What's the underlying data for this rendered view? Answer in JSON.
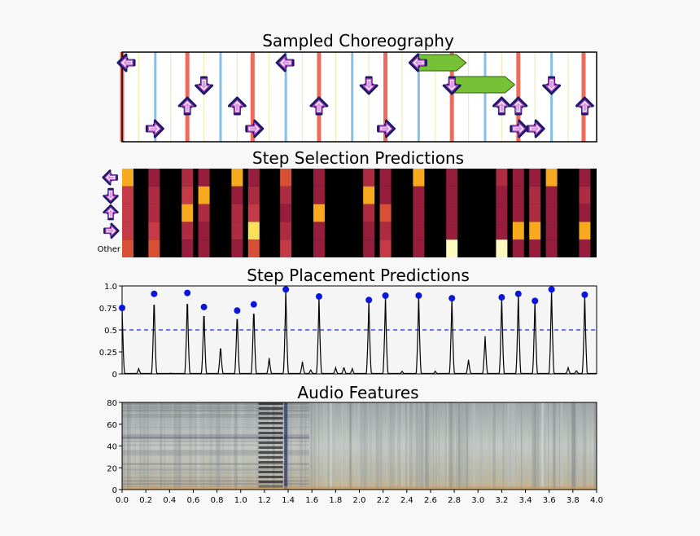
{
  "colors": {
    "red_beat": "#ec6b5a",
    "blue_beat": "#86bfe8",
    "yellow_beat": "#f2eab2",
    "arrow_fill": "#ffffff",
    "arrow_outline": "#1d1a63",
    "arrow_accent": "#b143c9",
    "hold_green": "#77c136",
    "peak_dot": "#0a17d9",
    "threshold_line": "#1c2be6",
    "curve": "#000000"
  },
  "chart_data": [
    {
      "type": "choreography",
      "title": "Sampled Choreography",
      "x_range": [
        0,
        4.0
      ],
      "lanes": [
        "left",
        "down",
        "up",
        "right"
      ],
      "red_beats": [
        0.0,
        0.55,
        1.1,
        1.66,
        2.22,
        2.78,
        3.34,
        3.89
      ],
      "blue_beats": [
        0.28,
        0.83,
        1.38,
        1.94,
        2.5,
        3.06,
        3.62
      ],
      "yellow_beats": [
        0.14,
        0.41,
        0.69,
        0.97,
        1.24,
        1.52,
        1.8,
        2.08,
        2.36,
        2.64,
        2.92,
        3.2,
        3.48,
        3.76
      ],
      "steps": [
        {
          "t": 0.02,
          "lane": "left"
        },
        {
          "t": 0.27,
          "lane": "right"
        },
        {
          "t": 0.55,
          "lane": "up"
        },
        {
          "t": 0.69,
          "lane": "down"
        },
        {
          "t": 0.97,
          "lane": "up"
        },
        {
          "t": 1.11,
          "lane": "right"
        },
        {
          "t": 1.38,
          "lane": "left"
        },
        {
          "t": 1.66,
          "lane": "up"
        },
        {
          "t": 2.08,
          "lane": "down"
        },
        {
          "t": 2.22,
          "lane": "right"
        },
        {
          "t": 2.5,
          "lane": "left"
        },
        {
          "t": 2.78,
          "lane": "down"
        },
        {
          "t": 3.2,
          "lane": "up"
        },
        {
          "t": 3.34,
          "lane": "up"
        },
        {
          "t": 3.34,
          "lane": "right"
        },
        {
          "t": 3.48,
          "lane": "right"
        },
        {
          "t": 3.62,
          "lane": "down"
        },
        {
          "t": 3.9,
          "lane": "up"
        }
      ],
      "holds": [
        {
          "lane": "left",
          "start": 2.5,
          "end": 2.9
        },
        {
          "lane": "down",
          "start": 2.78,
          "end": 3.31
        }
      ]
    },
    {
      "type": "heatmap",
      "title": "Step Selection Predictions",
      "rows": [
        "left",
        "down",
        "up",
        "right",
        "Other"
      ],
      "row_label_other": "Other",
      "x_range": [
        0,
        4.0
      ],
      "columns": [
        {
          "t": 0.02,
          "v": [
            0.8,
            0.5,
            0.5,
            0.5,
            0.6
          ]
        },
        {
          "t": 0.27,
          "v": [
            0.3,
            0.4,
            0.4,
            0.5,
            0.6
          ]
        },
        {
          "t": 0.55,
          "v": [
            0.4,
            0.5,
            0.8,
            0.4,
            0.3
          ]
        },
        {
          "t": 0.69,
          "v": [
            0.3,
            0.8,
            0.4,
            0.3,
            0.3
          ]
        },
        {
          "t": 0.97,
          "v": [
            0.8,
            0.3,
            0.4,
            0.4,
            0.3
          ]
        },
        {
          "t": 1.11,
          "v": [
            0.3,
            0.4,
            0.5,
            0.9,
            0.6
          ]
        },
        {
          "t": 1.38,
          "v": [
            0.6,
            0.4,
            0.3,
            0.4,
            0.5
          ]
        },
        {
          "t": 1.66,
          "v": [
            0.3,
            0.3,
            0.8,
            0.3,
            0.3
          ]
        },
        {
          "t": 2.08,
          "v": [
            0.4,
            0.8,
            0.4,
            0.3,
            0.3
          ]
        },
        {
          "t": 2.22,
          "v": [
            0.3,
            0.3,
            0.6,
            0.4,
            0.5
          ]
        },
        {
          "t": 2.5,
          "v": [
            0.8,
            0.3,
            0.3,
            0.3,
            0.3
          ]
        },
        {
          "t": 2.78,
          "v": [
            0.3,
            0.3,
            0.3,
            0.3,
            1.0
          ]
        },
        {
          "t": 3.2,
          "v": [
            0.4,
            0.3,
            0.3,
            0.3,
            1.0
          ]
        },
        {
          "t": 3.34,
          "v": [
            0.3,
            0.3,
            0.3,
            0.8,
            0.3
          ]
        },
        {
          "t": 3.48,
          "v": [
            0.3,
            0.4,
            0.4,
            0.8,
            0.3
          ]
        },
        {
          "t": 3.62,
          "v": [
            0.8,
            0.3,
            0.3,
            0.3,
            0.3
          ]
        },
        {
          "t": 3.9,
          "v": [
            0.3,
            0.4,
            0.3,
            0.8,
            0.3
          ]
        }
      ]
    },
    {
      "type": "line",
      "title": "Step Placement Predictions",
      "x_range": [
        0,
        4.0
      ],
      "ylim": [
        0,
        1.0
      ],
      "y_ticks": [
        "1.0",
        "0.75",
        "0.5",
        "0.25",
        "0"
      ],
      "y_tick_values": [
        1.0,
        0.75,
        0.5,
        0.25,
        0
      ],
      "threshold": 0.5,
      "peaks": [
        {
          "x": 0.0,
          "y": 0.75,
          "marked": true
        },
        {
          "x": 0.14,
          "y": 0.06,
          "marked": false
        },
        {
          "x": 0.27,
          "y": 0.91,
          "marked": true
        },
        {
          "x": 0.41,
          "y": 0.01,
          "marked": false
        },
        {
          "x": 0.55,
          "y": 0.92,
          "marked": true
        },
        {
          "x": 0.69,
          "y": 0.76,
          "marked": true
        },
        {
          "x": 0.83,
          "y": 0.33,
          "marked": false
        },
        {
          "x": 0.97,
          "y": 0.72,
          "marked": true
        },
        {
          "x": 1.11,
          "y": 0.79,
          "marked": true
        },
        {
          "x": 1.24,
          "y": 0.18,
          "marked": false
        },
        {
          "x": 1.38,
          "y": 0.96,
          "marked": true
        },
        {
          "x": 1.52,
          "y": 0.14,
          "marked": false
        },
        {
          "x": 1.59,
          "y": 0.05,
          "marked": false
        },
        {
          "x": 1.66,
          "y": 0.88,
          "marked": true
        },
        {
          "x": 1.8,
          "y": 0.07,
          "marked": false
        },
        {
          "x": 1.87,
          "y": 0.08,
          "marked": false
        },
        {
          "x": 1.94,
          "y": 0.06,
          "marked": false
        },
        {
          "x": 2.08,
          "y": 0.84,
          "marked": true
        },
        {
          "x": 2.22,
          "y": 0.89,
          "marked": true
        },
        {
          "x": 2.36,
          "y": 0.03,
          "marked": false
        },
        {
          "x": 2.5,
          "y": 0.89,
          "marked": true
        },
        {
          "x": 2.64,
          "y": 0.03,
          "marked": false
        },
        {
          "x": 2.78,
          "y": 0.86,
          "marked": true
        },
        {
          "x": 2.92,
          "y": 0.16,
          "marked": false
        },
        {
          "x": 3.06,
          "y": 0.43,
          "marked": false
        },
        {
          "x": 3.2,
          "y": 0.87,
          "marked": true
        },
        {
          "x": 3.34,
          "y": 0.91,
          "marked": true
        },
        {
          "x": 3.48,
          "y": 0.83,
          "marked": true
        },
        {
          "x": 3.62,
          "y": 0.96,
          "marked": true
        },
        {
          "x": 3.76,
          "y": 0.07,
          "marked": false
        },
        {
          "x": 3.83,
          "y": 0.04,
          "marked": false
        },
        {
          "x": 3.9,
          "y": 0.9,
          "marked": true
        }
      ]
    },
    {
      "type": "spectrogram",
      "title": "Audio Features",
      "x_range": [
        0,
        4.0
      ],
      "ylim": [
        0,
        80
      ],
      "y_ticks": [
        "80",
        "60",
        "40",
        "20",
        "0"
      ],
      "y_tick_values": [
        80,
        60,
        40,
        20,
        0
      ],
      "x_ticks": [
        "0.0",
        "0.2",
        "0.4",
        "0.6",
        "0.8",
        "1.0",
        "1.2",
        "1.4",
        "1.6",
        "1.8",
        "2.0",
        "2.2",
        "2.4",
        "2.6",
        "2.8",
        "3.0",
        "3.2",
        "3.4",
        "3.6",
        "3.8",
        "4.0"
      ],
      "x_tick_values": [
        0.0,
        0.2,
        0.4,
        0.6,
        0.8,
        1.0,
        1.2,
        1.4,
        1.6,
        1.8,
        2.0,
        2.2,
        2.4,
        2.6,
        2.8,
        3.0,
        3.2,
        3.4,
        3.6,
        3.8,
        4.0
      ]
    }
  ]
}
